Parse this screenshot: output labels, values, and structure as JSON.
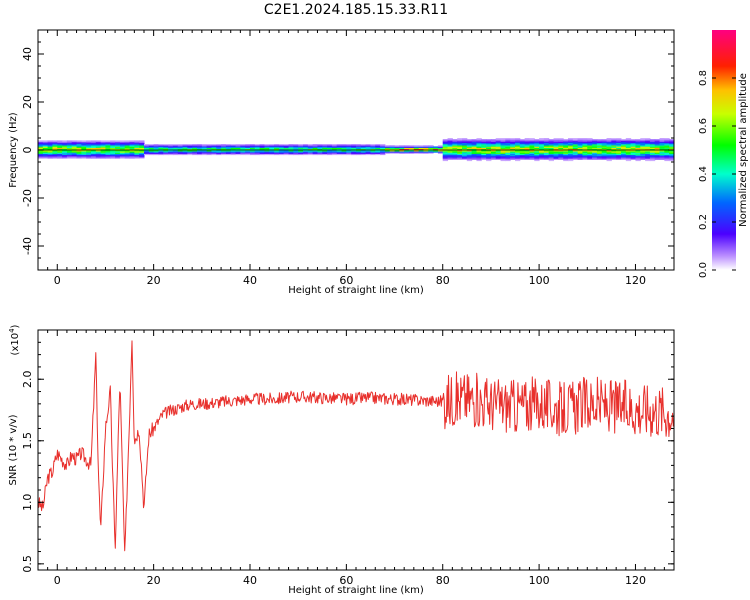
{
  "title": "C2E1.2024.185.15.33.R11",
  "colors": {
    "snr_line": "#e8302c",
    "axis": "#000000"
  },
  "chart_data": [
    {
      "type": "heatmap",
      "xlabel": "Height of straight line (km)",
      "ylabel": "Frequency (Hz)",
      "xlim": [
        -4,
        128
      ],
      "ylim": [
        -50,
        50
      ],
      "xticks": [
        0,
        20,
        40,
        60,
        80,
        100,
        120
      ],
      "yticks": [
        -40,
        -20,
        0,
        20,
        40
      ],
      "colorbar": {
        "label": "Normalized spectral amplitude",
        "range": [
          0,
          1
        ],
        "ticks": [
          "0.0",
          "0.2",
          "0.4",
          "0.6",
          "0.8"
        ],
        "colormap": "rainbow (purple-blue-cyan-green-yellow-red-magenta)"
      },
      "band": {
        "center_hz": 0,
        "core_halfwidth_hz": 2,
        "spread_halfwidth_by_segment": [
          {
            "x_range": [
              -4,
              18
            ],
            "halfwidth_hz": 5,
            "peak_amplitude": 0.8
          },
          {
            "x_range": [
              18,
              68
            ],
            "halfwidth_hz": 3,
            "peak_amplitude": 0.6
          },
          {
            "x_range": [
              68,
              80
            ],
            "halfwidth_hz": 2,
            "peak_amplitude": 1.0
          },
          {
            "x_range": [
              80,
              128
            ],
            "halfwidth_hz": 6,
            "peak_amplitude": 0.8
          }
        ]
      }
    },
    {
      "type": "line",
      "xlabel": "Height of straight line (km)",
      "ylabel": "SNR (10 * v/v)",
      "yscale_label": "(x10",
      "yscale_exp": "4",
      "yscale_close": ")",
      "xlim": [
        -4,
        128
      ],
      "ylim": [
        0.45,
        2.4
      ],
      "xticks": [
        0,
        20,
        40,
        60,
        80,
        100,
        120
      ],
      "yticks": [
        "0.5",
        "1.0",
        "1.5",
        "2.0"
      ],
      "series": [
        {
          "x": [
            -4,
            -3,
            -2,
            -1,
            0,
            1,
            2,
            3,
            4,
            5,
            6,
            7,
            8,
            8.5,
            9,
            10,
            11,
            12,
            13,
            14,
            15,
            15.5,
            16,
            17,
            18,
            19,
            20,
            22,
            24,
            26,
            28,
            30,
            35,
            40,
            45,
            50,
            55,
            60,
            65,
            70,
            75,
            80,
            85,
            90,
            95,
            100,
            105,
            110,
            115,
            120,
            125,
            128
          ],
          "y": [
            1.0,
            0.95,
            1.2,
            1.25,
            1.4,
            1.35,
            1.3,
            1.38,
            1.35,
            1.4,
            1.35,
            1.3,
            2.2,
            1.3,
            0.75,
            1.6,
            1.9,
            0.6,
            2.0,
            0.55,
            1.7,
            2.35,
            1.5,
            1.6,
            0.95,
            1.55,
            1.6,
            1.72,
            1.75,
            1.78,
            1.8,
            1.8,
            1.82,
            1.84,
            1.84,
            1.86,
            1.85,
            1.84,
            1.85,
            1.84,
            1.83,
            1.82,
            1.85,
            1.8,
            1.78,
            1.8,
            1.75,
            1.8,
            1.78,
            1.76,
            1.75,
            1.72
          ]
        }
      ]
    }
  ]
}
